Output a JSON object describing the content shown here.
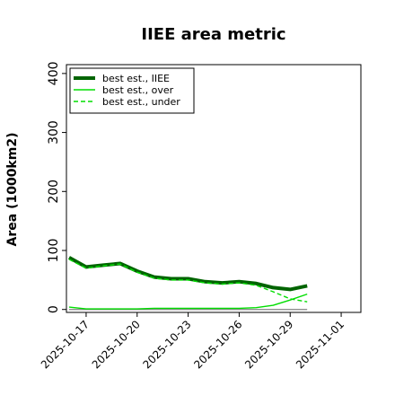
{
  "chart_data": {
    "type": "line",
    "title": "IIEE area metric",
    "ylabel": "Area (1000km2)",
    "xlabel": "",
    "ylim": [
      -5,
      415
    ],
    "xlim": [
      "2025-10-16",
      "2025-11-02"
    ],
    "yticks": [
      0,
      100,
      200,
      300,
      400
    ],
    "xticks": [
      "2025-10-17",
      "2025-10-20",
      "2025-10-23",
      "2025-10-26",
      "2025-10-29",
      "2025-11-01"
    ],
    "grid": false,
    "legend_position": "top-left",
    "x": [
      "2025-10-16",
      "2025-10-17",
      "2025-10-18",
      "2025-10-19",
      "2025-10-20",
      "2025-10-21",
      "2025-10-22",
      "2025-10-23",
      "2025-10-24",
      "2025-10-25",
      "2025-10-26",
      "2025-10-27",
      "2025-10-28",
      "2025-10-29",
      "2025-10-30"
    ],
    "series": [
      {
        "name": "best est., IIEE",
        "color": "#006400",
        "style": "solid-thick",
        "values": [
          88,
          72,
          75,
          78,
          65,
          55,
          52,
          52,
          47,
          45,
          47,
          44,
          37,
          34,
          40
        ]
      },
      {
        "name": "best est., over",
        "color": "#00dd00",
        "style": "solid",
        "values": [
          4,
          1,
          1,
          1,
          1,
          2,
          2,
          2,
          2,
          2,
          2,
          3,
          7,
          16,
          26
        ]
      },
      {
        "name": "best est., under",
        "color": "#00dd00",
        "style": "dashed",
        "values": [
          85,
          70,
          74,
          77,
          63,
          53,
          50,
          50,
          45,
          43,
          45,
          41,
          30,
          18,
          13
        ]
      }
    ],
    "baseline": {
      "color": "#808080",
      "value": 0
    }
  }
}
